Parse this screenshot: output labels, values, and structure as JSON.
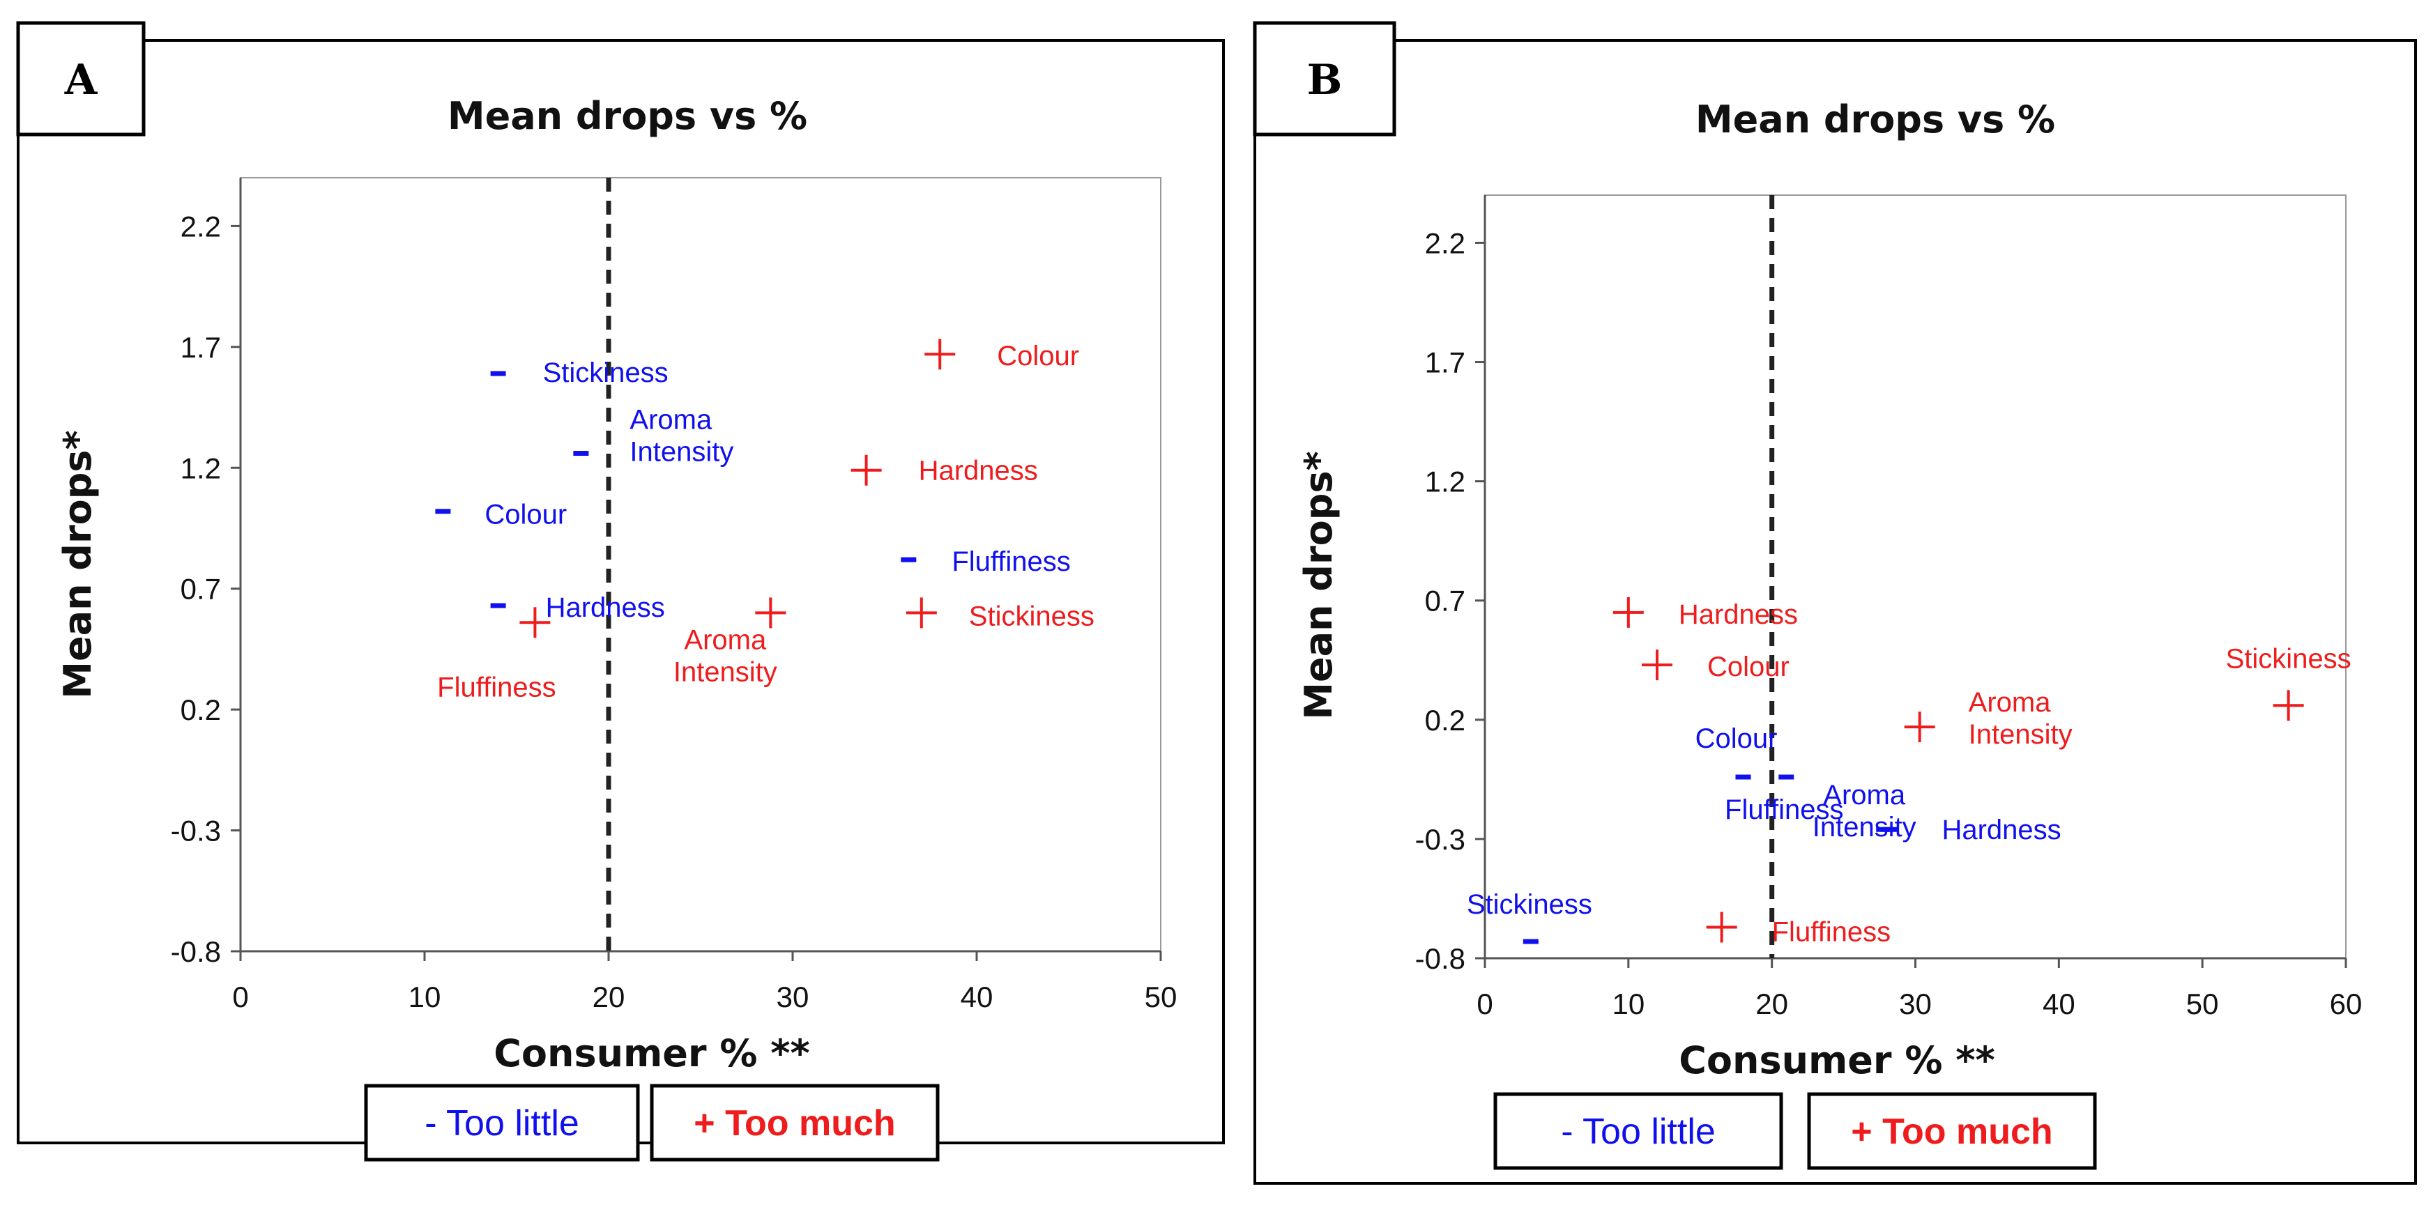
{
  "colors": {
    "too_little": "#1010ee",
    "too_much": "#ee1c1c",
    "axis": "#555555",
    "dashed": "#222222"
  },
  "legend": {
    "too_little": "- Too little",
    "too_much": "+ Too much"
  },
  "chart_data": [
    {
      "type": "scatter",
      "panel": "A",
      "title": "Mean drops vs %",
      "xlabel": "Consumer % **",
      "ylabel": "Mean drops*",
      "xlim": [
        0,
        50
      ],
      "ylim": [
        -0.8,
        2.4
      ],
      "xticks": [
        "0",
        "10",
        "20",
        "30",
        "40",
        "50"
      ],
      "yticks": [
        "2.2",
        "1.7",
        "1.2",
        "0.7",
        "0.2",
        "-0.3",
        "-0.8"
      ],
      "threshold_x": 20,
      "series": [
        {
          "name": "Too little",
          "marker": "-",
          "points": [
            {
              "label": "Stickiness",
              "x": 14.0,
              "y": 1.59
            },
            {
              "label": "Aroma|Intensity",
              "x": 18.5,
              "y": 1.26
            },
            {
              "label": "Colour",
              "x": 11.0,
              "y": 1.02
            },
            {
              "label": "Fluffiness",
              "x": 36.3,
              "y": 0.82
            },
            {
              "label": "Hardness",
              "x": 14.0,
              "y": 0.63
            }
          ]
        },
        {
          "name": "Too much",
          "marker": "+",
          "points": [
            {
              "label": "Colour",
              "x": 38.0,
              "y": 1.67
            },
            {
              "label": "Hardness",
              "x": 34.0,
              "y": 1.19
            },
            {
              "label": "Stickiness",
              "x": 37.0,
              "y": 0.6
            },
            {
              "label": "Aroma|Intensity",
              "x": 28.8,
              "y": 0.6
            },
            {
              "label": "Fluffiness",
              "x": 16.0,
              "y": 0.56
            }
          ]
        }
      ]
    },
    {
      "type": "scatter",
      "panel": "B",
      "title": "Mean drops vs %",
      "xlabel": "Consumer % **",
      "ylabel": "Mean drops*",
      "xlim": [
        0,
        60
      ],
      "ylim": [
        -0.8,
        2.4
      ],
      "xticks": [
        "0",
        "10",
        "20",
        "30",
        "40",
        "50",
        "60"
      ],
      "yticks": [
        "2.2",
        "1.7",
        "1.2",
        "0.7",
        "0.2",
        "-0.3",
        "-0.8"
      ],
      "threshold_x": 20,
      "series": [
        {
          "name": "Too little",
          "marker": "-",
          "points": [
            {
              "label": "Colour",
              "x": 18.0,
              "y": -0.04
            },
            {
              "label": "Fluffiness",
              "x": 21.0,
              "y": -0.04
            },
            {
              "label": "Aroma|Intensity",
              "x": 27.8,
              "y": -0.26
            },
            {
              "label": "Hardness",
              "x": 28.2,
              "y": -0.26
            },
            {
              "label": "Stickiness",
              "x": 3.2,
              "y": -0.73
            }
          ]
        },
        {
          "name": "Too much",
          "marker": "+",
          "points": [
            {
              "label": "Hardness",
              "x": 10.0,
              "y": 0.65
            },
            {
              "label": "Colour",
              "x": 12.0,
              "y": 0.43
            },
            {
              "label": "Aroma|Intensity",
              "x": 30.3,
              "y": 0.17
            },
            {
              "label": "Stickiness",
              "x": 56.0,
              "y": 0.26
            },
            {
              "label": "Fluffiness",
              "x": 16.5,
              "y": -0.67
            }
          ]
        }
      ]
    }
  ]
}
